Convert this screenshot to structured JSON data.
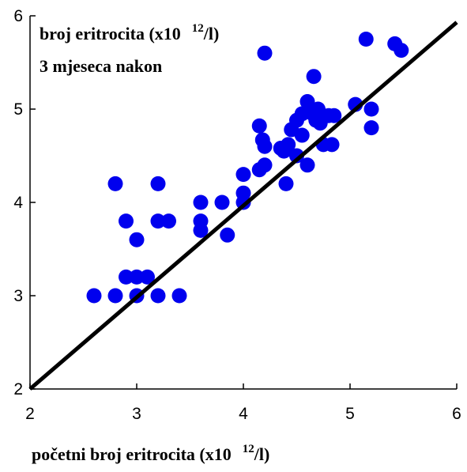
{
  "chart_data": {
    "type": "scatter",
    "ylabel": {
      "line1_prefix": "broj eritrocita (x10",
      "sup": "12",
      "line1_suffix": "/l)",
      "line2": "3 mjeseca nakon"
    },
    "xlabel": {
      "prefix": "početni broj eritrocita (x10",
      "sup": "12",
      "suffix": "/l)"
    },
    "xlim": [
      2,
      6
    ],
    "ylim": [
      2,
      6
    ],
    "xticks": [
      2,
      3,
      4,
      5,
      6
    ],
    "yticks": [
      2,
      3,
      4,
      5,
      6
    ],
    "grid": false,
    "marker_color": "#0000ee",
    "line_color": "#000000",
    "reference_line": {
      "x": [
        2,
        6
      ],
      "y": [
        2,
        5.93
      ]
    },
    "points": [
      [
        2.6,
        3.0
      ],
      [
        2.8,
        3.0
      ],
      [
        3.0,
        3.0
      ],
      [
        3.2,
        3.0
      ],
      [
        3.4,
        3.0
      ],
      [
        2.9,
        3.2
      ],
      [
        3.0,
        3.2
      ],
      [
        3.1,
        3.2
      ],
      [
        3.0,
        3.6
      ],
      [
        2.9,
        3.8
      ],
      [
        3.2,
        3.8
      ],
      [
        3.3,
        3.8
      ],
      [
        2.8,
        4.2
      ],
      [
        3.2,
        4.2
      ],
      [
        3.6,
        3.7
      ],
      [
        3.6,
        3.8
      ],
      [
        3.6,
        4.0
      ],
      [
        3.8,
        4.0
      ],
      [
        3.85,
        3.65
      ],
      [
        4.0,
        4.0
      ],
      [
        4.0,
        4.1
      ],
      [
        4.0,
        4.3
      ],
      [
        4.15,
        4.35
      ],
      [
        4.2,
        4.4
      ],
      [
        4.4,
        4.2
      ],
      [
        4.2,
        4.6
      ],
      [
        4.18,
        4.67
      ],
      [
        4.15,
        4.82
      ],
      [
        4.35,
        4.58
      ],
      [
        4.38,
        4.55
      ],
      [
        4.42,
        4.62
      ],
      [
        4.45,
        4.78
      ],
      [
        4.5,
        4.88
      ],
      [
        4.5,
        4.5
      ],
      [
        4.6,
        4.4
      ],
      [
        4.55,
        4.95
      ],
      [
        4.6,
        5.08
      ],
      [
        4.65,
        4.95
      ],
      [
        4.7,
        5.0
      ],
      [
        4.55,
        4.72
      ],
      [
        4.68,
        4.88
      ],
      [
        4.72,
        4.85
      ],
      [
        4.75,
        4.93
      ],
      [
        4.8,
        4.93
      ],
      [
        4.85,
        4.93
      ],
      [
        4.75,
        4.62
      ],
      [
        4.83,
        4.62
      ],
      [
        4.66,
        5.35
      ],
      [
        5.05,
        5.05
      ],
      [
        5.2,
        5.0
      ],
      [
        5.2,
        4.8
      ],
      [
        4.2,
        5.6
      ],
      [
        5.15,
        5.75
      ],
      [
        5.42,
        5.7
      ],
      [
        5.48,
        5.63
      ]
    ]
  }
}
